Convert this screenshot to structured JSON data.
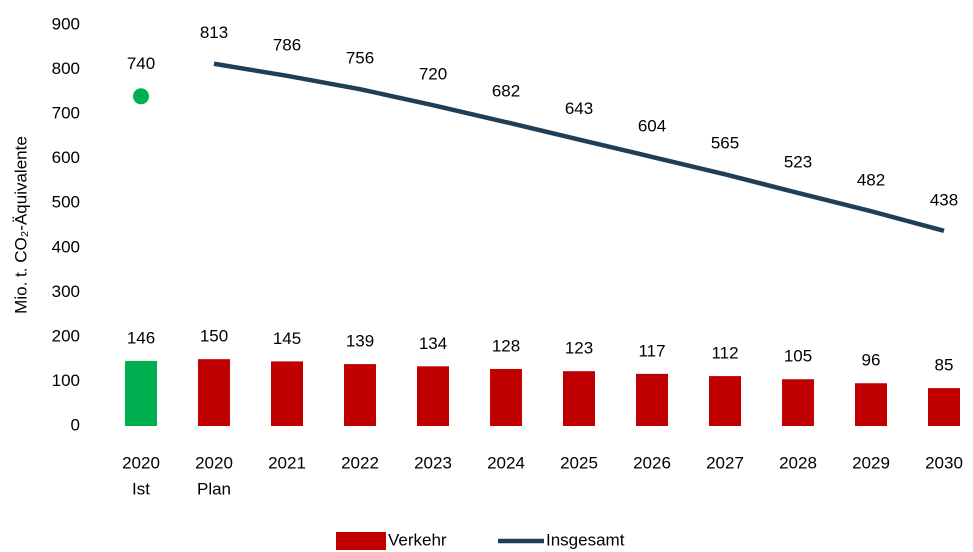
{
  "chart_data": {
    "type": "bar_line",
    "y_label": "Mio. t. CO₂-Äquivalente",
    "categories": [
      [
        "2020",
        "Ist"
      ],
      [
        "2020",
        "Plan"
      ],
      [
        "2021"
      ],
      [
        "2022"
      ],
      [
        "2023"
      ],
      [
        "2024"
      ],
      [
        "2025"
      ],
      [
        "2026"
      ],
      [
        "2027"
      ],
      [
        "2028"
      ],
      [
        "2029"
      ],
      [
        "2030"
      ]
    ],
    "series": [
      {
        "name": "Verkehr",
        "type": "bar",
        "color": "#c00000",
        "colors": [
          "#00b050",
          "#c00000",
          "#c00000",
          "#c00000",
          "#c00000",
          "#c00000",
          "#c00000",
          "#c00000",
          "#c00000",
          "#c00000",
          "#c00000",
          "#c00000"
        ],
        "values": [
          146,
          150,
          145,
          139,
          134,
          128,
          123,
          117,
          112,
          105,
          96,
          85
        ]
      },
      {
        "name": "Insgesamt",
        "type": "line",
        "color": "#203f56",
        "values": [
          null,
          813,
          786,
          756,
          720,
          682,
          643,
          604,
          565,
          523,
          482,
          438
        ]
      },
      {
        "type": "scatter",
        "color": "#00b050",
        "values": [
          740,
          null,
          null,
          null,
          null,
          null,
          null,
          null,
          null,
          null,
          null,
          null
        ]
      }
    ],
    "ylim": [
      0,
      900
    ],
    "yticks": [
      0,
      100,
      200,
      300,
      400,
      500,
      600,
      700,
      800,
      900
    ],
    "grid": false,
    "legend": "bottom"
  }
}
